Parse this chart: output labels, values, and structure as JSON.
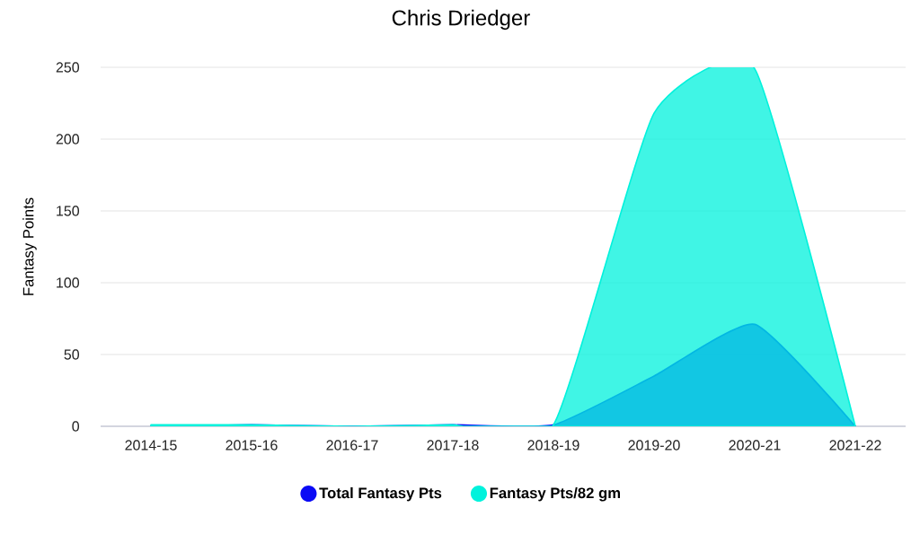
{
  "chart_data": {
    "type": "area",
    "title": "Chris Driedger",
    "ylabel": "Fantasy Points",
    "categories": [
      "2014-15",
      "2015-16",
      "2016-17",
      "2017-18",
      "2018-19",
      "2019-20",
      "2020-21",
      "2021-22"
    ],
    "series": [
      {
        "name": "Total Fantasy Pts",
        "color": "#0a0af5",
        "values": [
          0,
          1,
          0,
          1,
          1,
          35,
          71,
          0
        ]
      },
      {
        "name": "Fantasy Pts/82 gm",
        "color": "#00f2dc",
        "values": [
          1,
          1,
          0,
          1,
          1,
          218,
          249,
          0
        ]
      }
    ],
    "ylim": [
      0,
      250
    ],
    "yticks": [
      0,
      50,
      100,
      150,
      200,
      250
    ],
    "grid": "y",
    "legend": "bottom"
  }
}
